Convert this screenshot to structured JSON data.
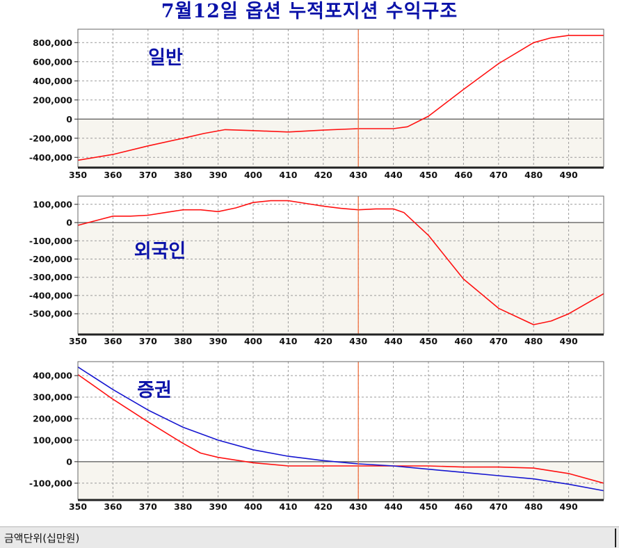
{
  "title": "7월12일 옵션 누적포지션 수익구조",
  "footer": {
    "unit_label": "금액단위(십만원)"
  },
  "colors": {
    "red": "#ff1010",
    "blue": "#1515d0",
    "label": "#0a12a8",
    "vline": "#f07040"
  },
  "chart_data": [
    {
      "type": "line",
      "label": "일반",
      "x_ticks": [
        350,
        360,
        370,
        380,
        390,
        400,
        410,
        420,
        430,
        440,
        450,
        460,
        470,
        480,
        490
      ],
      "y_ticks": [
        -400000,
        -200000,
        0,
        200000,
        400000,
        600000,
        800000
      ],
      "y_tick_labels": [
        "-400,000",
        "-200,000",
        "0",
        "200,000",
        "400,000",
        "600,000",
        "800,000"
      ],
      "xlim": [
        350,
        500
      ],
      "ylim": [
        -500000,
        940000
      ],
      "vline_x": 430,
      "grid": true,
      "series": [
        {
          "color": "red",
          "x": [
            350,
            360,
            370,
            380,
            386,
            392,
            400,
            410,
            420,
            430,
            440,
            444,
            450,
            460,
            470,
            480,
            485,
            490,
            500
          ],
          "y": [
            -430000,
            -370000,
            -280000,
            -200000,
            -150000,
            -110000,
            -120000,
            -135000,
            -115000,
            -100000,
            -100000,
            -80000,
            30000,
            310000,
            580000,
            800000,
            850000,
            875000,
            875000
          ]
        }
      ]
    },
    {
      "type": "line",
      "label": "외국인",
      "x_ticks": [
        350,
        360,
        370,
        380,
        390,
        400,
        410,
        420,
        430,
        440,
        450,
        460,
        470,
        480,
        490
      ],
      "y_ticks": [
        -500000,
        -400000,
        -300000,
        -200000,
        -100000,
        0,
        100000
      ],
      "y_tick_labels": [
        "-500,000",
        "-400,000",
        "-300,000",
        "-200,000",
        "-100,000",
        "0",
        "100,000"
      ],
      "xlim": [
        350,
        500
      ],
      "ylim": [
        -610000,
        145000
      ],
      "vline_x": 430,
      "grid": true,
      "series": [
        {
          "color": "red",
          "x": [
            350,
            355,
            360,
            365,
            370,
            375,
            380,
            385,
            390,
            395,
            400,
            405,
            410,
            415,
            420,
            425,
            430,
            435,
            440,
            443,
            450,
            460,
            470,
            480,
            485,
            490,
            500
          ],
          "y": [
            -15000,
            10000,
            35000,
            35000,
            40000,
            55000,
            70000,
            70000,
            60000,
            80000,
            110000,
            120000,
            120000,
            105000,
            90000,
            78000,
            70000,
            75000,
            75000,
            55000,
            -70000,
            -310000,
            -470000,
            -560000,
            -540000,
            -500000,
            -390000
          ]
        }
      ]
    },
    {
      "type": "line",
      "label": "증권",
      "x_ticks": [
        350,
        360,
        370,
        380,
        390,
        400,
        410,
        420,
        430,
        440,
        450,
        460,
        470,
        480,
        490
      ],
      "y_ticks": [
        -100000,
        0,
        100000,
        200000,
        300000,
        400000
      ],
      "y_tick_labels": [
        "-100,000",
        "0",
        "100,000",
        "200,000",
        "300,000",
        "400,000"
      ],
      "xlim": [
        350,
        500
      ],
      "ylim": [
        -175000,
        465000
      ],
      "vline_x": 430,
      "grid": true,
      "series": [
        {
          "color": "red",
          "x": [
            350,
            360,
            370,
            380,
            385,
            390,
            400,
            410,
            420,
            430,
            440,
            450,
            460,
            470,
            480,
            490,
            500
          ],
          "y": [
            405000,
            290000,
            185000,
            85000,
            40000,
            20000,
            -5000,
            -20000,
            -20000,
            -20000,
            -20000,
            -20000,
            -25000,
            -25000,
            -30000,
            -55000,
            -100000
          ]
        },
        {
          "color": "blue",
          "x": [
            350,
            360,
            370,
            380,
            390,
            400,
            410,
            420,
            430,
            440,
            450,
            460,
            470,
            480,
            490,
            500
          ],
          "y": [
            440000,
            335000,
            240000,
            160000,
            100000,
            55000,
            25000,
            5000,
            -10000,
            -20000,
            -35000,
            -50000,
            -65000,
            -80000,
            -105000,
            -135000
          ]
        }
      ]
    }
  ]
}
